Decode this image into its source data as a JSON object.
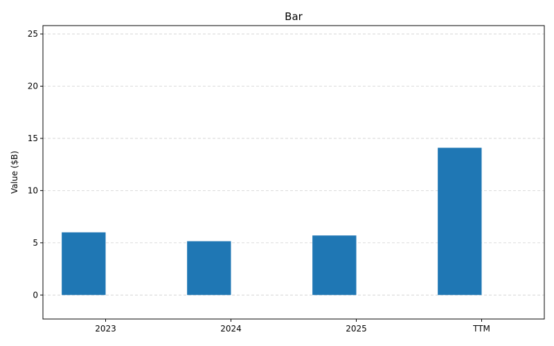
{
  "chart_data": {
    "type": "bar",
    "title": "Bar",
    "xlabel": "",
    "ylabel": "Value ($B)",
    "categories": [
      "2023",
      "2024",
      "2025",
      "TTM"
    ],
    "values": [
      6.0,
      5.15,
      5.7,
      14.1
    ],
    "ylim": [
      -2.3,
      25.8
    ],
    "yticks": [
      0,
      5,
      10,
      15,
      20,
      25
    ],
    "grid": true,
    "bar_color": "#1f77b4"
  }
}
